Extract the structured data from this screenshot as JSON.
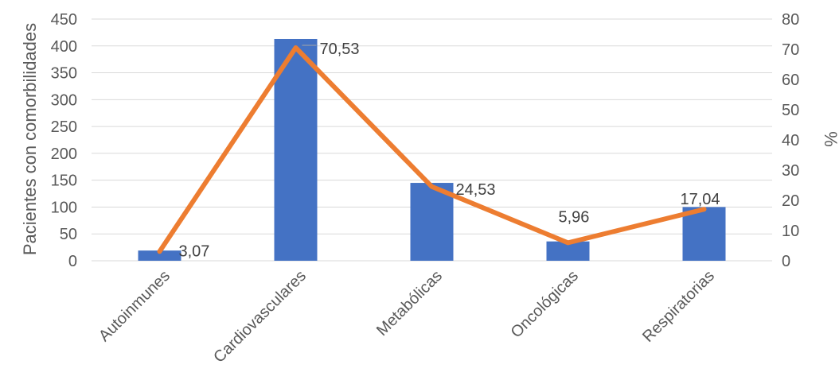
{
  "chart_data": {
    "type": "bar",
    "categories": [
      "Autoinmunes",
      "Cardiovasculares",
      "Metabólicas",
      "Oncológicas",
      "Respiratorias"
    ],
    "series": [
      {
        "values": [
          19,
          413,
          145,
          36,
          100
        ],
        "color": "#4472c4",
        "axis": "left",
        "kind": "bar"
      },
      {
        "values": [
          3.07,
          70.53,
          24.53,
          5.96,
          17.04
        ],
        "labels": [
          "3,07",
          "70,53",
          "24,53",
          "5,96",
          "17,04"
        ],
        "color": "#ed7d31",
        "axis": "right",
        "kind": "line"
      }
    ],
    "ylabel": "Pacientes con comorbilidades",
    "y2label": "%",
    "ylim": [
      0,
      450
    ],
    "y2lim": [
      0,
      80
    ],
    "yticks": [
      "0",
      "50",
      "100",
      "150",
      "200",
      "250",
      "300",
      "350",
      "400",
      "450"
    ],
    "y2ticks": [
      "0",
      "10",
      "20",
      "30",
      "40",
      "50",
      "60",
      "70",
      "80"
    ],
    "grid": true
  }
}
